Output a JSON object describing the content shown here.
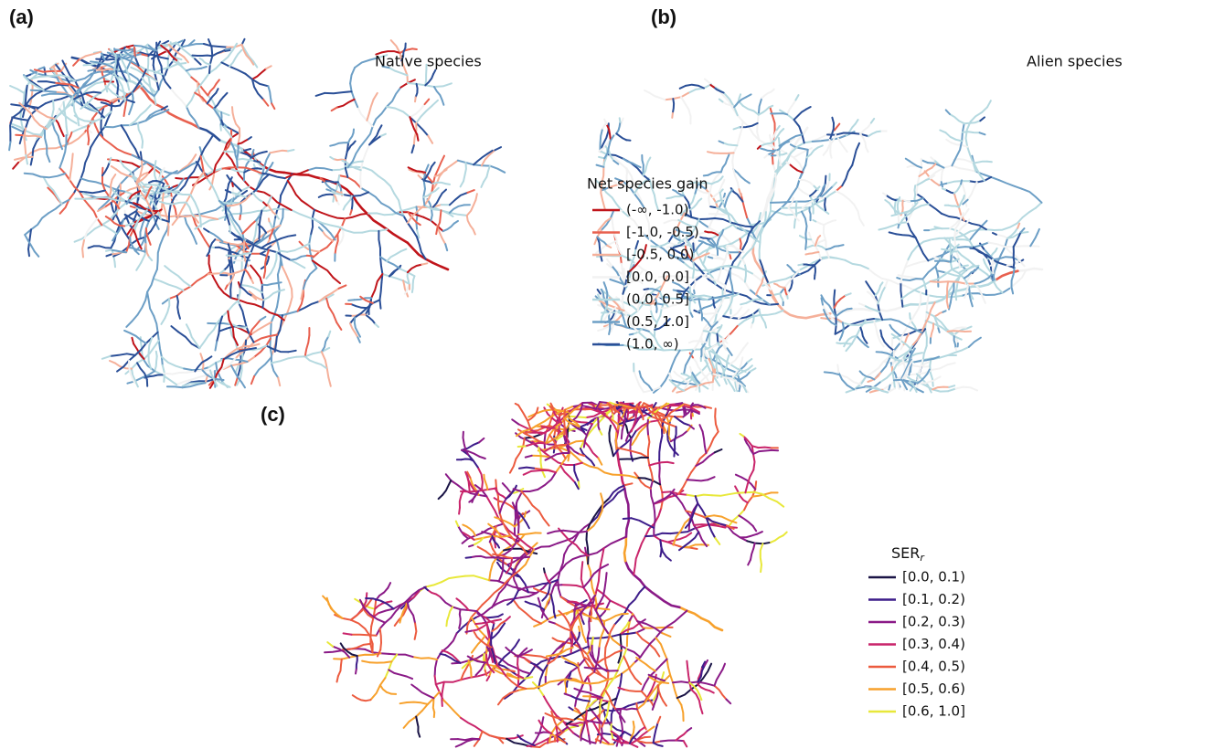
{
  "panels": [
    {
      "label": "(a)",
      "title": "Native species"
    },
    {
      "label": "(b)",
      "title": "Alien species"
    },
    {
      "label": "(c)"
    }
  ],
  "legend_gain": {
    "title": "Net species gain",
    "entries": [
      {
        "label": "(-∞, -1.0)",
        "color": "#c0141a"
      },
      {
        "label": "[-1.0, -0.5)",
        "color": "#e8604f"
      },
      {
        "label": "[-0.5,  0.0)",
        "color": "#f5b09a"
      },
      {
        "label": "[0.0, 0.0]",
        "color": "#f2f2f2"
      },
      {
        "label": "(0.0, 0.5]",
        "color": "#b5d9e0"
      },
      {
        "label": "(0.5, 1.0]",
        "color": "#6d9fc6"
      },
      {
        "label": "(1.0, ∞)",
        "color": "#2a4f97"
      }
    ]
  },
  "legend_ser": {
    "title": "SER",
    "subscript": "r",
    "entries": [
      {
        "label": "[0.0, 0.1)",
        "color": "#1a1446"
      },
      {
        "label": "[0.1, 0.2)",
        "color": "#3d1d8a"
      },
      {
        "label": "[0.2, 0.3)",
        "color": "#8a1a87"
      },
      {
        "label": "[0.3, 0.4)",
        "color": "#c9256b"
      },
      {
        "label": "[0.4, 0.5)",
        "color": "#ec5b3f"
      },
      {
        "label": "[0.5, 0.6)",
        "color": "#f7a12c"
      },
      {
        "label": "[0.6, 1.0]",
        "color": "#e8e83a"
      }
    ]
  }
}
